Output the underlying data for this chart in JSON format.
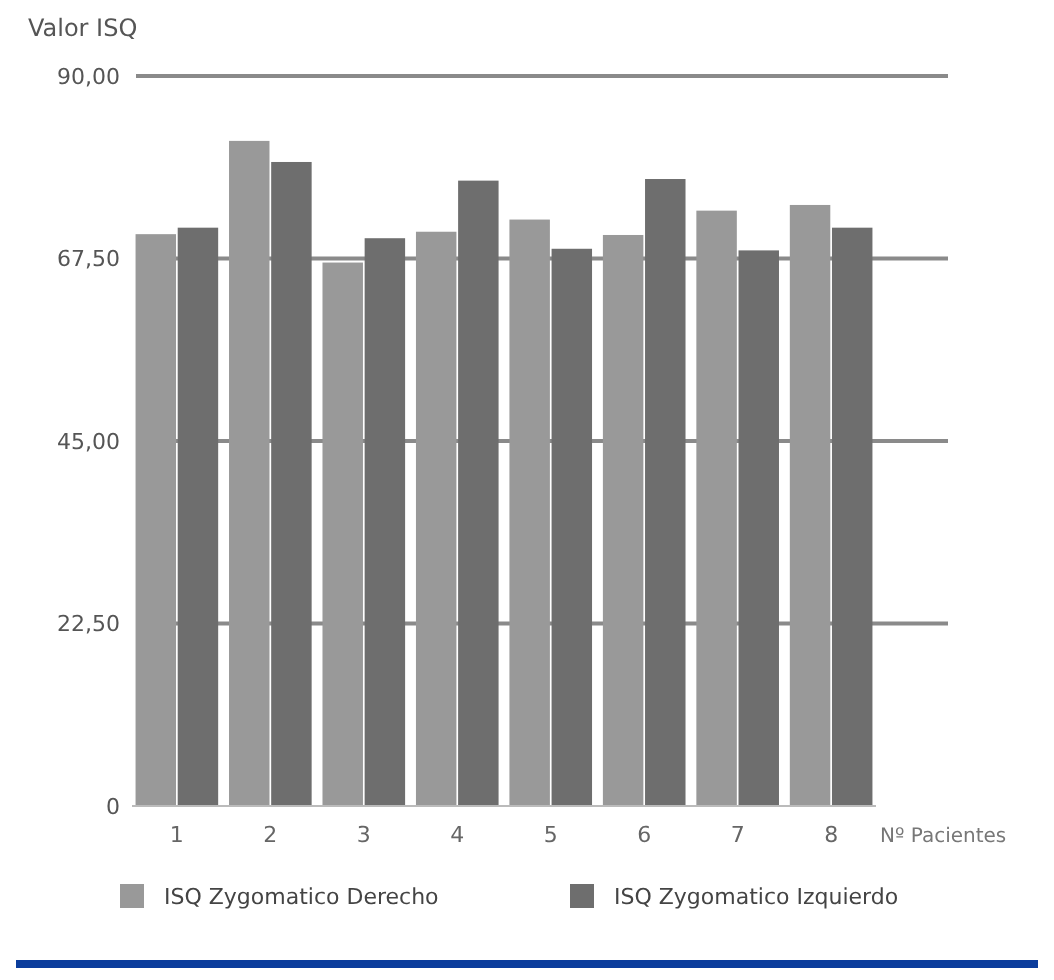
{
  "chart_data": {
    "type": "bar",
    "ylabel": "Valor ISQ",
    "xlabel": "Nº Pacientes",
    "categories": [
      "1",
      "2",
      "3",
      "4",
      "5",
      "6",
      "7",
      "8"
    ],
    "series": [
      {
        "name": "ISQ Zygomatico Derecho",
        "color": "#999999",
        "values": [
          70.5,
          82,
          67,
          70.8,
          72.3,
          70.4,
          73.4,
          74.1
        ]
      },
      {
        "name": "ISQ Zygomatico Izquierdo",
        "color": "#6e6e6e",
        "values": [
          71.3,
          79.4,
          70,
          77.1,
          68.7,
          77.3,
          68.5,
          71.3
        ]
      }
    ],
    "ylim": [
      0,
      90
    ],
    "yticks": [
      {
        "value": 0,
        "label": "0"
      },
      {
        "value": 22.5,
        "label": "22,50"
      },
      {
        "value": 45,
        "label": "45,00"
      },
      {
        "value": 67.5,
        "label": "67,50"
      },
      {
        "value": 90,
        "label": "90,00"
      }
    ],
    "grid": "y",
    "legend": "bottom"
  }
}
